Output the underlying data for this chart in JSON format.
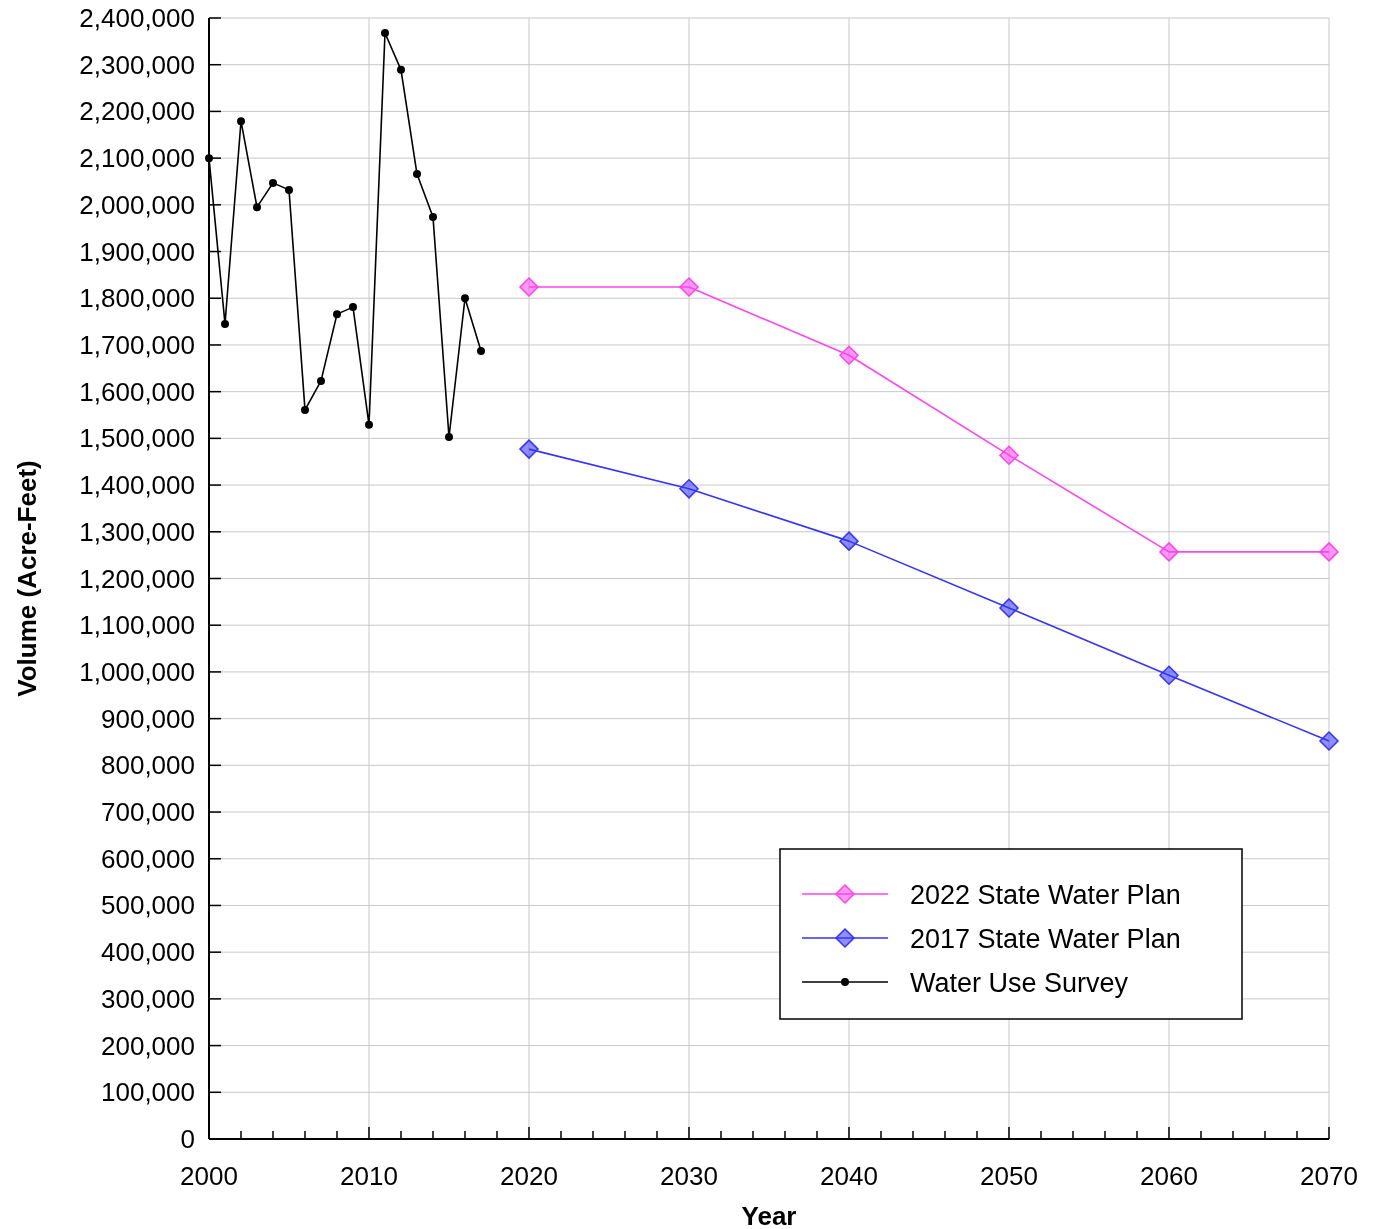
{
  "chart_data": {
    "type": "line",
    "xlabel": "Year",
    "ylabel": "Volume (Acre-Feet)",
    "xlim": [
      2000,
      2070
    ],
    "xticks": [
      2000,
      {
        "value": 2002,
        "label": null
      },
      {
        "value": 2004,
        "label": null
      },
      {
        "value": 2006,
        "label": null
      },
      {
        "value": 2008,
        "label": null
      },
      2010,
      {
        "value": 2012,
        "label": null
      },
      {
        "value": 2014,
        "label": null
      },
      {
        "value": 2016,
        "label": null
      },
      {
        "value": 2018,
        "label": null
      },
      2020,
      {
        "value": 2022,
        "label": null
      },
      {
        "value": 2024,
        "label": null
      },
      {
        "value": 2026,
        "label": null
      },
      {
        "value": 2028,
        "label": null
      },
      2030,
      {
        "value": 2032,
        "label": null
      },
      {
        "value": 2034,
        "label": null
      },
      {
        "value": 2036,
        "label": null
      },
      {
        "value": 2038,
        "label": null
      },
      2040,
      {
        "value": 2042,
        "label": null
      },
      {
        "value": 2044,
        "label": null
      },
      {
        "value": 2046,
        "label": null
      },
      {
        "value": 2048,
        "label": null
      },
      2050,
      {
        "value": 2052,
        "label": null
      },
      {
        "value": 2054,
        "label": null
      },
      {
        "value": 2056,
        "label": null
      },
      {
        "value": 2058,
        "label": null
      },
      2060,
      {
        "value": 2062,
        "label": null
      },
      {
        "value": 2064,
        "label": null
      },
      {
        "value": 2066,
        "label": null
      },
      {
        "value": 2068,
        "label": null
      },
      2070
    ],
    "ylim": [
      0,
      2400000
    ],
    "yticks": [
      0,
      {
        "value": 100000,
        "label": "100,000"
      },
      {
        "value": 200000,
        "label": "200,000"
      },
      {
        "value": 300000,
        "label": "300,000"
      },
      {
        "value": 400000,
        "label": "400,000"
      },
      {
        "value": 500000,
        "label": "500,000"
      },
      {
        "value": 600000,
        "label": "600,000"
      },
      {
        "value": 700000,
        "label": "700,000"
      },
      {
        "value": 800000,
        "label": "800,000"
      },
      {
        "value": 900000,
        "label": "900,000"
      },
      {
        "value": 1000000,
        "label": "1,000,000"
      },
      {
        "value": 1100000,
        "label": "1,100,000"
      },
      {
        "value": 1200000,
        "label": "1,200,000"
      },
      {
        "value": 1300000,
        "label": "1,300,000"
      },
      {
        "value": 1400000,
        "label": "1,400,000"
      },
      {
        "value": 1500000,
        "label": "1,500,000"
      },
      {
        "value": 1600000,
        "label": "1,600,000"
      },
      {
        "value": 1700000,
        "label": "1,700,000"
      },
      {
        "value": 1800000,
        "label": "1,800,000"
      },
      {
        "value": 1900000,
        "label": "1,900,000"
      },
      {
        "value": 2000000,
        "label": "2,000,000"
      },
      {
        "value": 2100000,
        "label": "2,100,000"
      },
      {
        "value": 2200000,
        "label": "2,200,000"
      },
      {
        "value": 2300000,
        "label": "2,300,000"
      },
      {
        "value": 2400000,
        "label": "2,400,000"
      }
    ],
    "grid": true,
    "legend": "bottom right",
    "line_style": "solid",
    "series": [
      {
        "name": "2022 State Water Plan",
        "color": "#ff44ee",
        "marker": "diamond",
        "x": [
          2020,
          2030,
          2040,
          2050,
          2060,
          2070
        ],
        "values": [
          1824000,
          1824000,
          1678000,
          1464000,
          1257000,
          1257000
        ]
      },
      {
        "name": "2017 State Water Plan",
        "color": "#3333ff",
        "marker": "diamond",
        "x": [
          2020,
          2030,
          2040,
          2050,
          2060,
          2070
        ],
        "values": [
          1477000,
          1392000,
          1280000,
          1137000,
          993000,
          852000
        ]
      },
      {
        "name": "Water Use Survey",
        "color": "#000000",
        "marker": "circle",
        "x": [
          2000,
          2001,
          2002,
          2003,
          2004,
          2005,
          2006,
          2007,
          2008,
          2009,
          2010,
          2011,
          2012,
          2013,
          2014,
          2015,
          2016,
          2017
        ],
        "values": [
          2100000,
          1745000,
          2179000,
          1995000,
          2047000,
          2032000,
          1561000,
          1623000,
          1766000,
          1781000,
          1529000,
          2368000,
          2289000,
          2066000,
          1974000,
          1503000,
          1800000,
          1687000
        ]
      }
    ]
  }
}
